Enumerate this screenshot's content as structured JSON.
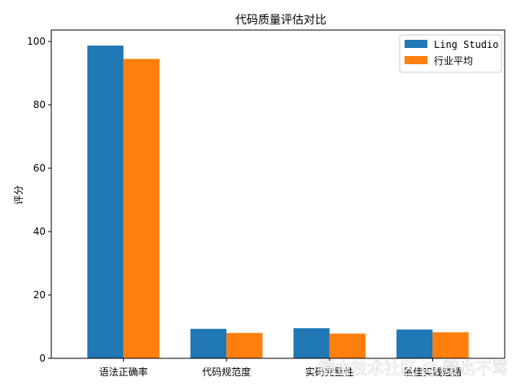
{
  "chart_data": {
    "type": "bar",
    "title": "代码质量评估对比",
    "xlabel": "",
    "ylabel": "评分",
    "categories": [
      "语法正确率",
      "代码规范度",
      "实码完整性",
      "最佳实践遵循"
    ],
    "series": [
      {
        "name": "Ling Studio",
        "color": "#1f77b4",
        "values": [
          98.7,
          9.3,
          9.5,
          9.1
        ]
      },
      {
        "name": "行业平均",
        "color": "#ff7f0e",
        "values": [
          94.5,
          8.0,
          7.8,
          8.2
        ]
      }
    ],
    "ylim": [
      0,
      103.6
    ],
    "yticks": [
      0,
      20,
      40,
      60,
      80,
      100
    ],
    "grid": false,
    "legend_position": "top-right"
  },
  "watermark": "掘金技术社区 @ 赞也不骂"
}
